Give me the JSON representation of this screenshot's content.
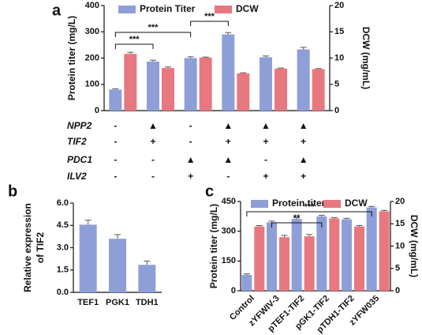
{
  "chart_data": [
    {
      "type": "bar",
      "panel_label": "a",
      "y_label": "Protein titer (mg/L)",
      "y2_label": "DCW (mg/mL)",
      "categories": [
        null,
        null,
        null,
        null,
        null,
        null
      ],
      "series": [
        {
          "name": "Protein Titer",
          "color": "#8e9fd8",
          "axis": "y",
          "values": [
            80,
            187,
            200,
            290,
            203,
            233
          ],
          "errors": [
            3,
            5,
            5,
            7,
            5,
            8
          ]
        },
        {
          "name": "DCW",
          "color": "#e8787f",
          "axis": "y2",
          "values": [
            10.8,
            8.1,
            10.1,
            7.1,
            8.0,
            7.9
          ],
          "errors": [
            0.3,
            0.2,
            0.1,
            0.1,
            0.1,
            0.1
          ]
        }
      ],
      "ylim": [
        0,
        400
      ],
      "yticks": [
        0,
        100,
        200,
        300,
        400
      ],
      "y2lim": [
        0,
        20
      ],
      "y2ticks": [
        0,
        5,
        10,
        15,
        20
      ],
      "annotations": [
        {
          "text": "***",
          "from": 0,
          "to": 1
        },
        {
          "text": "***",
          "from": 0,
          "to": 2
        },
        {
          "text": "***",
          "from": 2,
          "to": 3
        }
      ],
      "genotype_table": [
        {
          "gene": "NPP2",
          "marks": [
            "-",
            "▲",
            "-",
            "▲",
            "▲",
            "▲"
          ]
        },
        {
          "gene": "TIF2",
          "marks": [
            "-",
            "+",
            "-",
            "+",
            "+",
            "+"
          ]
        },
        {
          "gene": "PDC1",
          "marks": [
            "-",
            "-",
            "▲",
            "▲",
            "-",
            "▲"
          ]
        },
        {
          "gene": "ILV2",
          "marks": [
            "-",
            "-",
            "+",
            "-",
            "+",
            "+"
          ]
        }
      ]
    },
    {
      "type": "bar",
      "panel_label": "b",
      "y_label": [
        "Relative expression",
        "of TIF2"
      ],
      "categories": [
        "TEF1",
        "PGK1",
        "TDH1"
      ],
      "series": [
        {
          "color": "#8e9fd8",
          "axis": "y",
          "values": [
            4.55,
            3.6,
            1.85
          ],
          "errors": [
            0.3,
            0.28,
            0.25
          ]
        }
      ],
      "ylim": [
        0,
        6
      ],
      "yticks": [
        {
          "value": 0,
          "label": "0.0"
        },
        {
          "value": 1.5,
          "label": "1.5"
        },
        {
          "value": 3,
          "label": "3.0"
        },
        {
          "value": 4.5,
          "label": "4.5"
        },
        {
          "value": 6,
          "label": "6.0"
        }
      ]
    },
    {
      "type": "bar",
      "panel_label": "c",
      "y_label": "Protein titer (mg/L)",
      "y2_label": "DCW (mg/mL)",
      "categories": [
        "Control",
        "zYFWIV-3",
        "pTEF1-TIF2",
        "pGK1-TIF2",
        "pTDH1-TIF2",
        "zYFW035"
      ],
      "series": [
        {
          "name": "Protein titer",
          "color": "#8e9fd8",
          "axis": "y",
          "values": [
            80,
            345,
            362,
            375,
            360,
            420
          ],
          "errors": [
            5,
            6,
            6,
            5,
            5,
            5
          ]
        },
        {
          "name": "DCW",
          "color": "#e8787f",
          "axis": "y2",
          "values": [
            14.4,
            12.0,
            12.2,
            16.2,
            14.4,
            17.8
          ],
          "errors": [
            0.2,
            0.4,
            0.4,
            0.2,
            0.2,
            0.2
          ]
        }
      ],
      "ylim": [
        0,
        450
      ],
      "yticks": [
        0,
        150,
        300,
        450
      ],
      "y2lim": [
        0,
        20
      ],
      "y2ticks": [
        0,
        5,
        10,
        15,
        20
      ],
      "annotations": [
        {
          "text": "**",
          "from": 1,
          "to": 3
        },
        {
          "text": "***",
          "from": 0,
          "to": 5
        }
      ]
    }
  ]
}
